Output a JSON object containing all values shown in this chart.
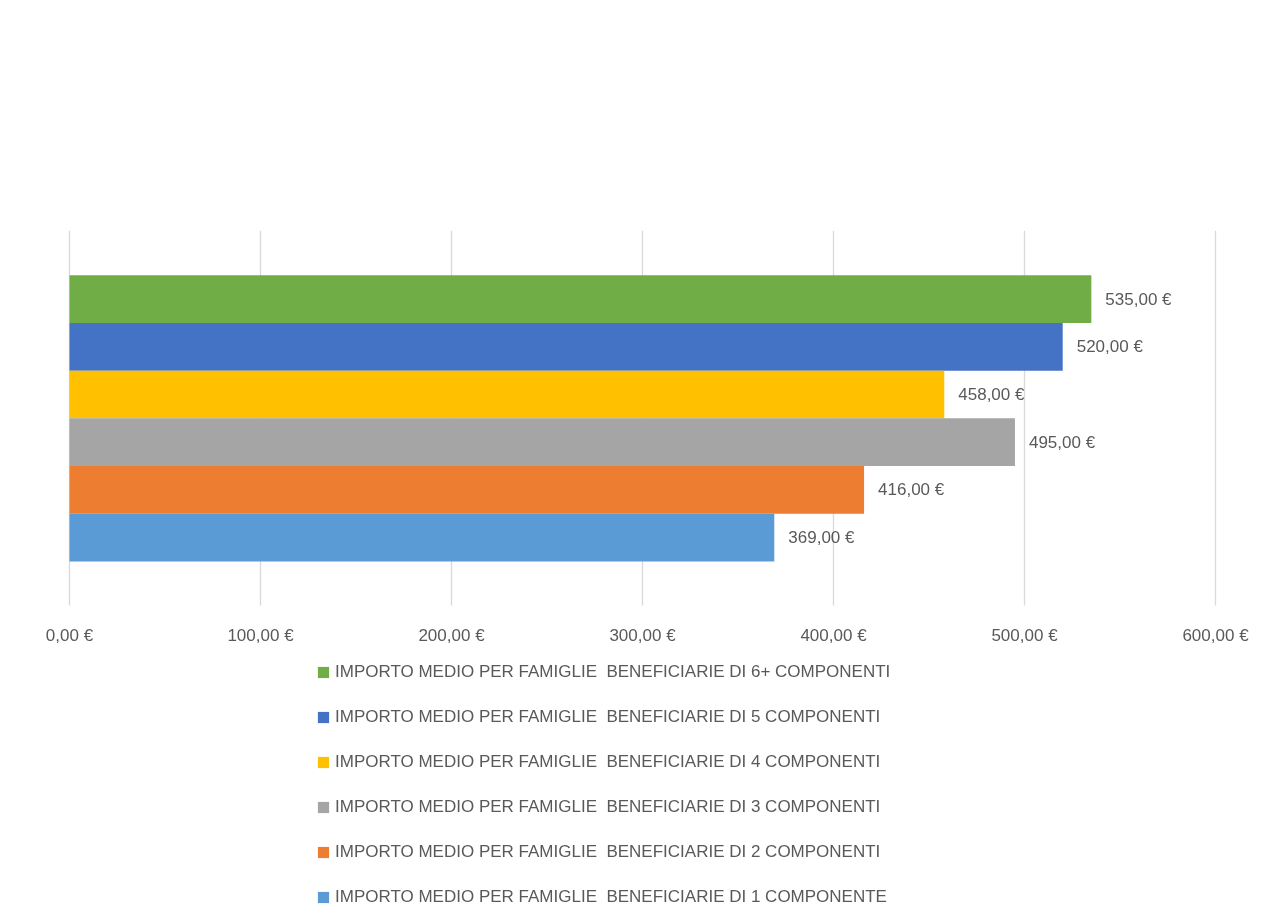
{
  "chart_data": {
    "type": "bar",
    "orientation": "horizontal",
    "categories": [
      null
    ],
    "series": [
      {
        "name": "IMPORTO MEDIO PER FAMIGLIE  BENEFICIARIE DI 6+ COMPONENTI",
        "color": "#70ad47",
        "values": [
          535
        ],
        "value_labels": [
          "535,00 €"
        ]
      },
      {
        "name": "IMPORTO MEDIO PER FAMIGLIE  BENEFICIARIE DI 5 COMPONENTI",
        "color": "#4472c4",
        "values": [
          520
        ],
        "value_labels": [
          "520,00 €"
        ]
      },
      {
        "name": "IMPORTO MEDIO PER FAMIGLIE  BENEFICIARIE DI 4 COMPONENTI",
        "color": "#ffc000",
        "values": [
          458
        ],
        "value_labels": [
          "458,00 €"
        ]
      },
      {
        "name": "IMPORTO MEDIO PER FAMIGLIE  BENEFICIARIE DI 3 COMPONENTI",
        "color": "#a5a5a5",
        "values": [
          495
        ],
        "value_labels": [
          "495,00 €"
        ]
      },
      {
        "name": "IMPORTO MEDIO PER FAMIGLIE  BENEFICIARIE DI 2 COMPONENTI",
        "color": "#ed7d31",
        "values": [
          416
        ],
        "value_labels": [
          "416,00 €"
        ]
      },
      {
        "name": "IMPORTO MEDIO PER FAMIGLIE  BENEFICIARIE DI 1 COMPONENTE",
        "color": "#5b9bd5",
        "values": [
          369
        ],
        "value_labels": [
          "369,00 €"
        ]
      }
    ],
    "xlim": [
      0,
      600
    ],
    "xticks": [
      {
        "value": 0,
        "label": "0,00 €"
      },
      {
        "value": 100,
        "label": "100,00 €"
      },
      {
        "value": 200,
        "label": "200,00 €"
      },
      {
        "value": 300,
        "label": "300,00 €"
      },
      {
        "value": 400,
        "label": "400,00 €"
      },
      {
        "value": 500,
        "label": "500,00 €"
      },
      {
        "value": 600,
        "label": "600,00 €"
      }
    ],
    "grid": "x",
    "legend": "bottom"
  }
}
